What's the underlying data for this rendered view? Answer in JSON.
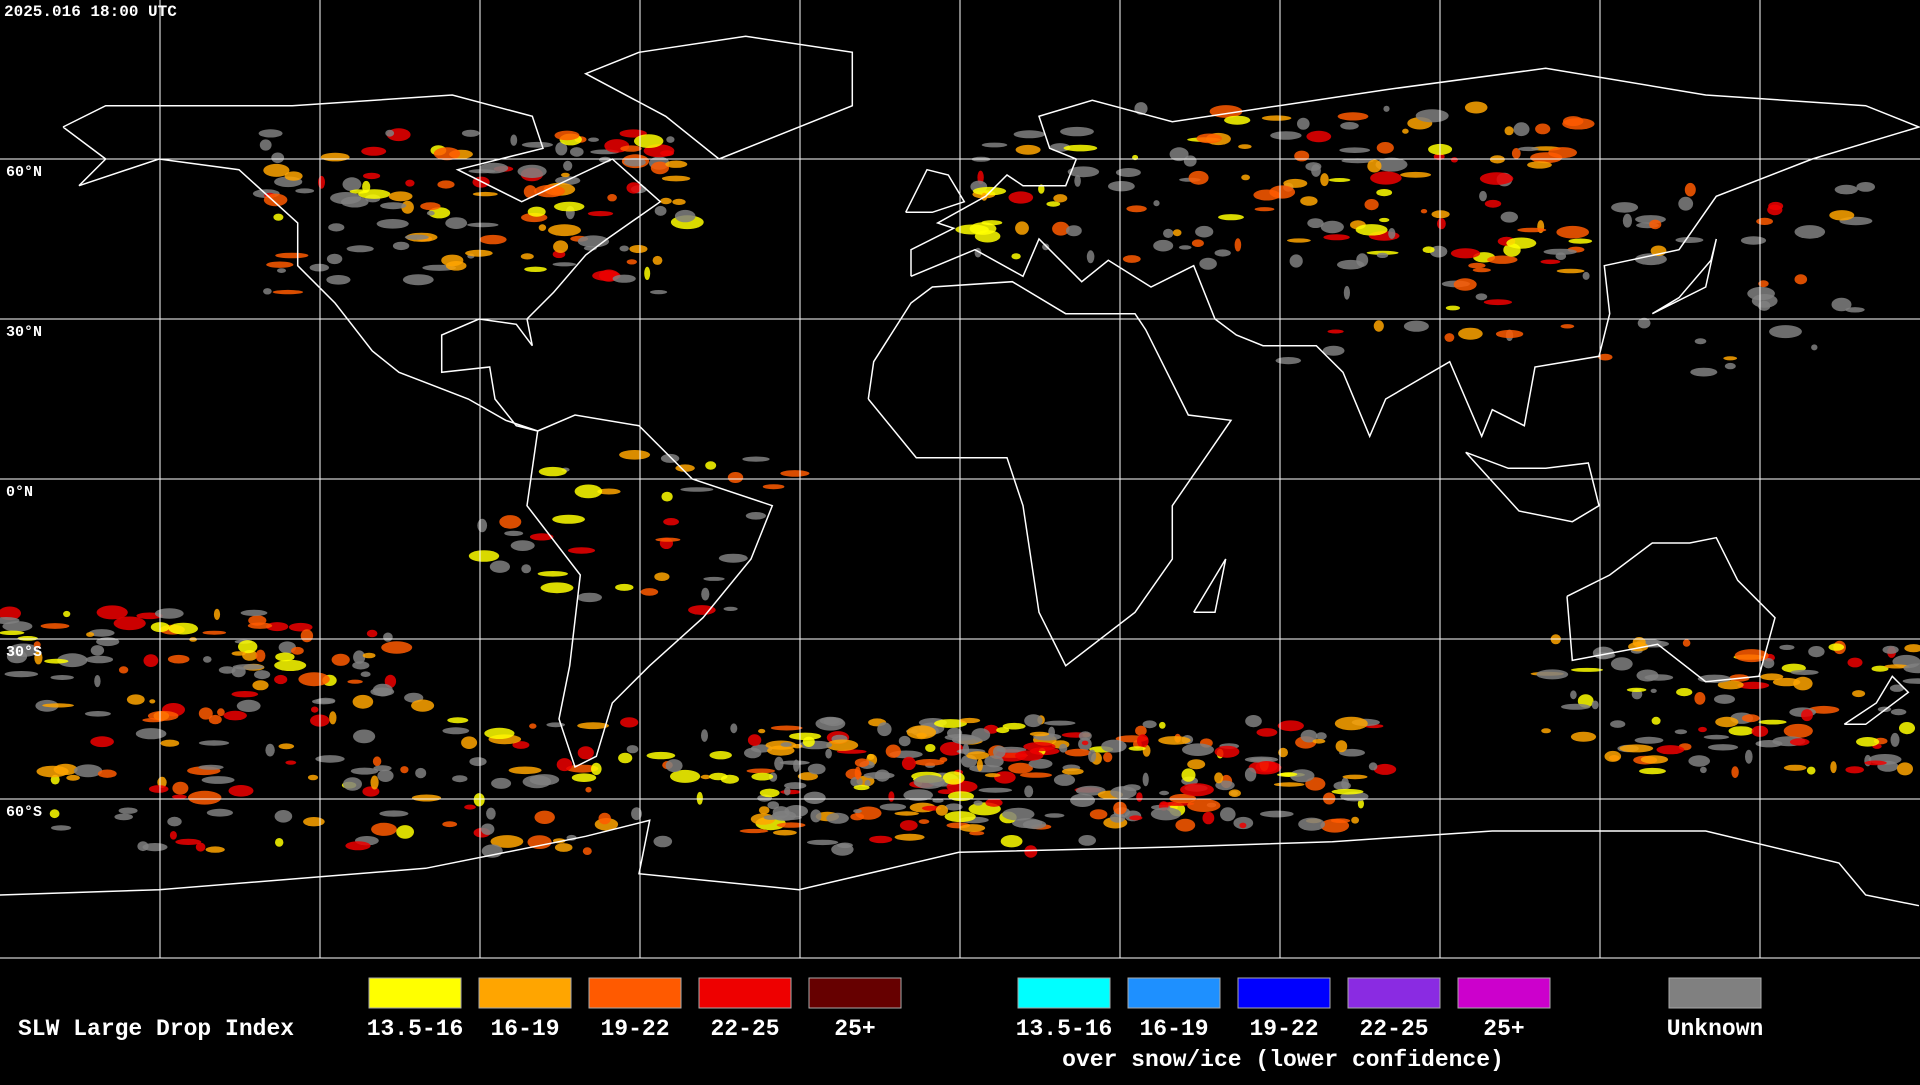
{
  "header": {
    "title": "2025.016 18:00 UTC"
  },
  "map": {
    "latitude_labels": [
      "60°N",
      "30°N",
      "0°N",
      "30°S",
      "60°S"
    ]
  },
  "legend": {
    "title": "SLW Large Drop Index",
    "groups": [
      {
        "items": [
          {
            "label": "13.5-16",
            "color": "#ffff00"
          },
          {
            "label": "16-19",
            "color": "#ffa500"
          },
          {
            "label": "19-22",
            "color": "#ff5a00"
          },
          {
            "label": "22-25",
            "color": "#ee0000"
          },
          {
            "label": "25+",
            "color": "#660000"
          }
        ]
      },
      {
        "items": [
          {
            "label": "13.5-16",
            "color": "#00ffff"
          },
          {
            "label": "16-19",
            "color": "#1e90ff"
          },
          {
            "label": "19-22",
            "color": "#0000ff"
          },
          {
            "label": "22-25",
            "color": "#8a2be2"
          },
          {
            "label": "25+",
            "color": "#cc00cc"
          }
        ],
        "caption": "over snow/ice (lower confidence)"
      },
      {
        "items": [
          {
            "label": "Unknown",
            "color": "#808080"
          }
        ]
      }
    ]
  }
}
